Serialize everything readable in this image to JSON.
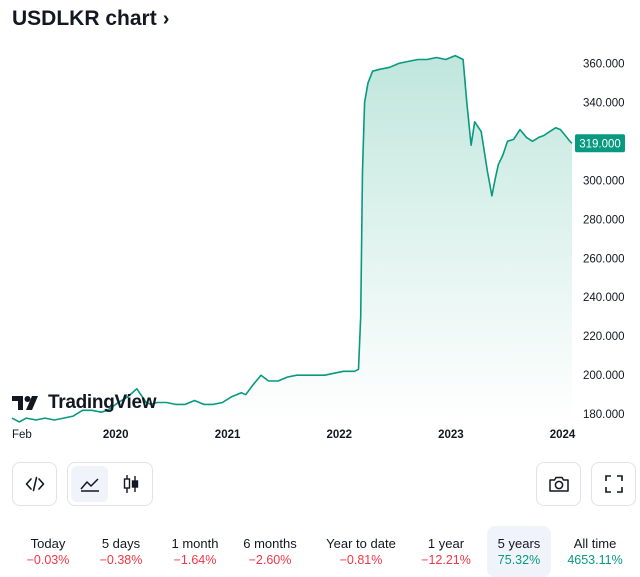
{
  "header": {
    "title": "USDLKR chart",
    "chevron": "›"
  },
  "brand": {
    "logo_text": "TradingView",
    "icon": "tradingview-logo-icon"
  },
  "colors": {
    "line": "#089981",
    "fill_top": "#bfe6dc",
    "fill_bottom": "#ffffff",
    "tag": "#089981",
    "negative": "#f23645",
    "positive": "#089981"
  },
  "chart_data": {
    "type": "area",
    "title": "USDLKR",
    "x_ticks": [
      "Feb",
      "2020",
      "2021",
      "2022",
      "2023",
      "2024"
    ],
    "x_tick_dates": [
      "2019-02-01",
      "2020-01-01",
      "2021-01-01",
      "2022-01-01",
      "2023-01-01",
      "2024-01-01"
    ],
    "y_ticks": [
      "180.000",
      "200.000",
      "220.000",
      "240.000",
      "260.000",
      "280.000",
      "300.000",
      "320.000",
      "340.000",
      "360.000"
    ],
    "ylim": [
      177,
      372
    ],
    "xlim": [
      "2019-01-27",
      "2024-02-01"
    ],
    "last_value": "319.000",
    "grid": false,
    "series": [
      {
        "x": [
          "2019-01-27",
          "2019-02-20",
          "2019-03-15",
          "2019-04-15",
          "2019-05-15",
          "2019-06-15",
          "2019-07-15",
          "2019-08-15",
          "2019-09-15",
          "2019-10-15",
          "2019-11-15",
          "2019-12-05",
          "2020-01-10",
          "2020-02-10",
          "2020-03-10",
          "2020-04-10",
          "2020-04-25",
          "2020-05-15",
          "2020-06-15",
          "2020-07-15",
          "2020-08-15",
          "2020-09-15",
          "2020-10-15",
          "2020-11-15",
          "2020-12-15",
          "2021-01-15",
          "2021-02-15",
          "2021-03-01",
          "2021-03-25",
          "2021-04-20",
          "2021-05-15",
          "2021-06-15",
          "2021-07-15",
          "2021-08-15",
          "2021-09-15",
          "2021-10-15",
          "2021-11-15",
          "2021-12-15",
          "2022-01-15",
          "2022-02-20",
          "2022-03-05",
          "2022-03-12",
          "2022-03-18",
          "2022-03-25",
          "2022-04-05",
          "2022-04-20",
          "2022-05-15",
          "2022-06-15",
          "2022-07-15",
          "2022-08-15",
          "2022-09-15",
          "2022-10-15",
          "2022-11-15",
          "2022-12-15",
          "2023-01-15",
          "2023-02-10",
          "2023-02-22",
          "2023-03-08",
          "2023-03-20",
          "2023-04-10",
          "2023-04-30",
          "2023-05-15",
          "2023-05-25",
          "2023-06-05",
          "2023-06-20",
          "2023-07-05",
          "2023-07-25",
          "2023-08-15",
          "2023-09-05",
          "2023-09-25",
          "2023-10-15",
          "2023-11-01",
          "2023-11-20",
          "2023-12-10",
          "2023-12-25",
          "2024-01-10",
          "2024-01-25",
          "2024-02-01"
        ],
        "y": [
          178,
          176,
          178,
          177,
          178,
          177,
          178,
          179,
          182,
          182,
          181,
          182,
          186,
          189,
          193,
          186,
          185,
          186,
          186,
          185,
          185,
          187,
          185,
          185,
          186,
          189,
          191,
          190,
          195,
          200,
          197,
          197,
          199,
          200,
          200,
          200,
          200,
          201,
          202,
          202,
          203,
          230,
          305,
          340,
          350,
          356,
          357,
          358,
          360,
          361,
          362,
          362,
          363,
          362,
          364,
          362,
          340,
          318,
          330,
          325,
          305,
          292,
          300,
          308,
          313,
          320,
          321,
          326,
          322,
          320,
          322,
          323,
          325,
          327,
          326,
          323,
          320,
          319
        ]
      }
    ]
  },
  "toolbar": {
    "embed_icon": "embed-code-icon",
    "area_icon": "area-chart-icon",
    "candles_icon": "candlestick-icon",
    "snapshot_icon": "camera-icon",
    "fullscreen_icon": "fullscreen-icon"
  },
  "periods": [
    {
      "label": "Today",
      "value": "−0.03%",
      "sign": "neg"
    },
    {
      "label": "5 days",
      "value": "−0.38%",
      "sign": "neg"
    },
    {
      "label": "1 month",
      "value": "−1.64%",
      "sign": "neg"
    },
    {
      "label": "6 months",
      "value": "−2.60%",
      "sign": "neg"
    },
    {
      "label": "Year to date",
      "value": "−0.81%",
      "sign": "neg"
    },
    {
      "label": "1 year",
      "value": "−12.21%",
      "sign": "neg"
    },
    {
      "label": "5 years",
      "value": "75.32%",
      "sign": "pos",
      "active": true
    },
    {
      "label": "All time",
      "value": "4653.11%",
      "sign": "pos"
    }
  ]
}
